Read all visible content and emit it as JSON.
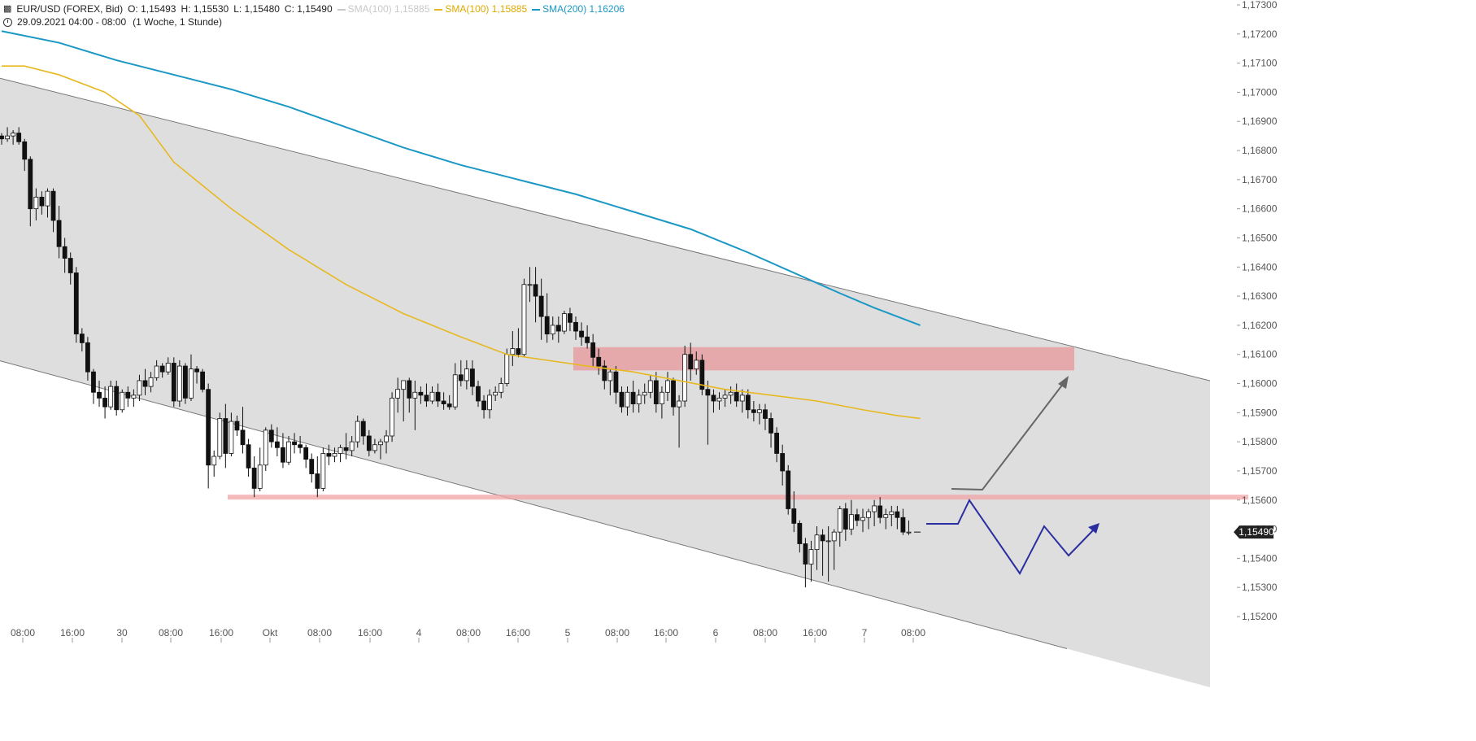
{
  "header": {
    "symbol": "EUR/USD (FOREX, Bid)",
    "o": "O: 1,15493",
    "h": "H: 1,15530",
    "l": "L: 1,15480",
    "c": "C: 1,15490",
    "sma1_label": "SMA(100)",
    "sma1_value": "1,15885",
    "sma2_label": "SMA(100)",
    "sma2_value": "1,15885",
    "sma3_label": "SMA(200)",
    "sma3_value": "1,16206",
    "range": "29.09.2021 04:00 - 08:00",
    "period": "(1 Woche, 1 Stunde)"
  },
  "colors": {
    "sma1": "#c8c8c8",
    "sma2": "#e8b820",
    "sma3": "#1b98c4",
    "channel": "#dedede",
    "zone": "#e6a0a3",
    "projection_up": "#666666",
    "projection_path": "#2b2ea0",
    "price_tag": "#222222"
  },
  "chart_data": {
    "type": "candlestick",
    "instrument": "EUR/USD",
    "ylim": [
      1.1515,
      1.173
    ],
    "y_ticks": [
      "1,17300",
      "1,17200",
      "1,17100",
      "1,17000",
      "1,16900",
      "1,16800",
      "1,16700",
      "1,16600",
      "1,16500",
      "1,16400",
      "1,16300",
      "1,16200",
      "1,16100",
      "1,16000",
      "1,15900",
      "1,15800",
      "1,15700",
      "1,15600",
      "1,15500",
      "1,15400",
      "1,15300",
      "1,15200"
    ],
    "x_ticks": [
      "08:00",
      "16:00",
      "30",
      "08:00",
      "16:00",
      "Okt",
      "08:00",
      "16:00",
      "4",
      "08:00",
      "16:00",
      "5",
      "08:00",
      "16:00",
      "6",
      "08:00",
      "16:00",
      "7",
      "08:00"
    ],
    "last_price": "1,15490",
    "sma_yellow": [
      [
        0,
        1.1709
      ],
      [
        4,
        1.1709
      ],
      [
        10,
        1.1706
      ],
      [
        18,
        1.17
      ],
      [
        24,
        1.1692
      ],
      [
        30,
        1.1676
      ],
      [
        40,
        1.166
      ],
      [
        50,
        1.1646
      ],
      [
        60,
        1.1634
      ],
      [
        70,
        1.1624
      ],
      [
        80,
        1.1616
      ],
      [
        88,
        1.161
      ],
      [
        95,
        1.1608
      ],
      [
        102,
        1.1606
      ],
      [
        110,
        1.1604
      ],
      [
        118,
        1.1601
      ],
      [
        126,
        1.1598
      ],
      [
        134,
        1.1596
      ],
      [
        142,
        1.1594
      ],
      [
        150,
        1.1591
      ],
      [
        156,
        1.1589
      ],
      [
        160,
        1.1588
      ]
    ],
    "sma_blue": [
      [
        0,
        1.1721
      ],
      [
        10,
        1.1717
      ],
      [
        20,
        1.1711
      ],
      [
        30,
        1.1706
      ],
      [
        40,
        1.1701
      ],
      [
        50,
        1.1695
      ],
      [
        60,
        1.1688
      ],
      [
        70,
        1.1681
      ],
      [
        80,
        1.1675
      ],
      [
        90,
        1.167
      ],
      [
        100,
        1.1665
      ],
      [
        110,
        1.1659
      ],
      [
        120,
        1.1653
      ],
      [
        130,
        1.1645
      ],
      [
        138,
        1.1638
      ],
      [
        146,
        1.1631
      ],
      [
        152,
        1.1626
      ],
      [
        156,
        1.1623
      ],
      [
        160,
        1.162
      ]
    ],
    "channel": {
      "upper": [
        [
          0,
          1.17048
        ],
        [
          212,
          1.16002
        ]
      ],
      "lower": [
        [
          0,
          1.16078
        ],
        [
          212,
          1.14949
        ]
      ]
    },
    "resistance_zone": [
      1.16045,
      1.16125
    ],
    "support_level": 1.1561,
    "candles": [
      [
        1.1685,
        1.1686,
        1.1682,
        1.1684
      ],
      [
        1.1684,
        1.1688,
        1.1683,
        1.1685
      ],
      [
        1.1685,
        1.1687,
        1.1682,
        1.1686
      ],
      [
        1.1686,
        1.1688,
        1.1682,
        1.1683
      ],
      [
        1.1683,
        1.1684,
        1.1673,
        1.1677
      ],
      [
        1.1677,
        1.1678,
        1.1654,
        1.166
      ],
      [
        1.166,
        1.1667,
        1.1656,
        1.1664
      ],
      [
        1.1664,
        1.1666,
        1.1658,
        1.1661
      ],
      [
        1.1661,
        1.1667,
        1.1657,
        1.1666
      ],
      [
        1.1666,
        1.1667,
        1.1652,
        1.1656
      ],
      [
        1.1656,
        1.1661,
        1.1643,
        1.1647
      ],
      [
        1.1647,
        1.165,
        1.1638,
        1.1643
      ],
      [
        1.1643,
        1.1645,
        1.1634,
        1.1638
      ],
      [
        1.1638,
        1.164,
        1.1614,
        1.1617
      ],
      [
        1.1617,
        1.1619,
        1.1611,
        1.1614
      ],
      [
        1.1614,
        1.1616,
        1.1601,
        1.1604
      ],
      [
        1.1604,
        1.1605,
        1.1593,
        1.1597
      ],
      [
        1.1597,
        1.1601,
        1.1592,
        1.1595
      ],
      [
        1.1595,
        1.1599,
        1.1588,
        1.1592
      ],
      [
        1.1592,
        1.1601,
        1.1591,
        1.1599
      ],
      [
        1.1599,
        1.1601,
        1.1589,
        1.1591
      ],
      [
        1.1591,
        1.1598,
        1.159,
        1.1597
      ],
      [
        1.1597,
        1.1599,
        1.1592,
        1.1595
      ],
      [
        1.1595,
        1.1598,
        1.1592,
        1.1596
      ],
      [
        1.1596,
        1.1603,
        1.1594,
        1.1601
      ],
      [
        1.1601,
        1.1605,
        1.1596,
        1.1599
      ],
      [
        1.1599,
        1.1604,
        1.1597,
        1.1602
      ],
      [
        1.1602,
        1.1608,
        1.1601,
        1.1606
      ],
      [
        1.1606,
        1.1607,
        1.1602,
        1.1604
      ],
      [
        1.1604,
        1.1609,
        1.1603,
        1.1607
      ],
      [
        1.1607,
        1.1609,
        1.1592,
        1.1594
      ],
      [
        1.1594,
        1.1608,
        1.1592,
        1.1606
      ],
      [
        1.1606,
        1.1607,
        1.1593,
        1.1595
      ],
      [
        1.1595,
        1.161,
        1.1594,
        1.1605
      ],
      [
        1.1605,
        1.1606,
        1.16,
        1.1604
      ],
      [
        1.1604,
        1.1605,
        1.1597,
        1.1598
      ],
      [
        1.1598,
        1.16,
        1.1564,
        1.1572
      ],
      [
        1.1572,
        1.1577,
        1.1568,
        1.1575
      ],
      [
        1.1575,
        1.159,
        1.1574,
        1.1588
      ],
      [
        1.1588,
        1.1593,
        1.1571,
        1.1576
      ],
      [
        1.1576,
        1.159,
        1.1575,
        1.1587
      ],
      [
        1.1587,
        1.1589,
        1.1582,
        1.1584
      ],
      [
        1.1584,
        1.1592,
        1.1576,
        1.1579
      ],
      [
        1.1579,
        1.1581,
        1.1568,
        1.1571
      ],
      [
        1.1571,
        1.1575,
        1.1561,
        1.1564
      ],
      [
        1.1564,
        1.1578,
        1.1563,
        1.1572
      ],
      [
        1.1572,
        1.1585,
        1.157,
        1.1584
      ],
      [
        1.1584,
        1.1586,
        1.1578,
        1.158
      ],
      [
        1.158,
        1.1585,
        1.1575,
        1.1578
      ],
      [
        1.1578,
        1.1583,
        1.1571,
        1.1573
      ],
      [
        1.1573,
        1.1582,
        1.1572,
        1.158
      ],
      [
        1.158,
        1.1583,
        1.1576,
        1.1579
      ],
      [
        1.1579,
        1.1582,
        1.1576,
        1.1578
      ],
      [
        1.1578,
        1.1579,
        1.1571,
        1.1574
      ],
      [
        1.1574,
        1.1576,
        1.1566,
        1.1569
      ],
      [
        1.1569,
        1.1575,
        1.1561,
        1.1564
      ],
      [
        1.1564,
        1.1578,
        1.1563,
        1.1576
      ],
      [
        1.1576,
        1.1579,
        1.1572,
        1.1575
      ],
      [
        1.1575,
        1.1578,
        1.1573,
        1.1576
      ],
      [
        1.1576,
        1.1579,
        1.1573,
        1.1578
      ],
      [
        1.1578,
        1.1583,
        1.1574,
        1.1577
      ],
      [
        1.1577,
        1.1582,
        1.1575,
        1.158
      ],
      [
        1.158,
        1.1589,
        1.1578,
        1.1587
      ],
      [
        1.1587,
        1.1588,
        1.1579,
        1.1582
      ],
      [
        1.1582,
        1.1584,
        1.1575,
        1.1577
      ],
      [
        1.1577,
        1.1581,
        1.1576,
        1.1579
      ],
      [
        1.1579,
        1.1581,
        1.1574,
        1.158
      ],
      [
        1.158,
        1.1584,
        1.1576,
        1.1582
      ],
      [
        1.1582,
        1.1597,
        1.158,
        1.1595
      ],
      [
        1.1595,
        1.1602,
        1.159,
        1.1598
      ],
      [
        1.1598,
        1.16,
        1.1587,
        1.1601
      ],
      [
        1.1601,
        1.1602,
        1.159,
        1.1595
      ],
      [
        1.1595,
        1.1601,
        1.1584,
        1.1597
      ],
      [
        1.1597,
        1.1599,
        1.1593,
        1.1596
      ],
      [
        1.1596,
        1.16,
        1.1592,
        1.1594
      ],
      [
        1.1594,
        1.1599,
        1.1593,
        1.1597
      ],
      [
        1.1597,
        1.16,
        1.1592,
        1.1594
      ],
      [
        1.1594,
        1.1597,
        1.1591,
        1.1593
      ],
      [
        1.1593,
        1.1596,
        1.1591,
        1.1592
      ],
      [
        1.1592,
        1.1607,
        1.1591,
        1.1603
      ],
      [
        1.1603,
        1.1608,
        1.1599,
        1.1601
      ],
      [
        1.1601,
        1.1608,
        1.1598,
        1.1605
      ],
      [
        1.1605,
        1.1608,
        1.1596,
        1.1599
      ],
      [
        1.1599,
        1.1601,
        1.1592,
        1.1594
      ],
      [
        1.1594,
        1.1596,
        1.1588,
        1.1591
      ],
      [
        1.1591,
        1.1598,
        1.1588,
        1.1596
      ],
      [
        1.1596,
        1.1599,
        1.1594,
        1.1597
      ],
      [
        1.1597,
        1.1602,
        1.1595,
        1.16
      ],
      [
        1.16,
        1.1612,
        1.1599,
        1.161
      ],
      [
        1.161,
        1.1618,
        1.1606,
        1.1612
      ],
      [
        1.1612,
        1.1619,
        1.1609,
        1.161
      ],
      [
        1.161,
        1.1636,
        1.1609,
        1.1634
      ],
      [
        1.1634,
        1.164,
        1.1628,
        1.1634
      ],
      [
        1.1634,
        1.164,
        1.1621,
        1.163
      ],
      [
        1.163,
        1.1636,
        1.1615,
        1.1623
      ],
      [
        1.1623,
        1.1631,
        1.1614,
        1.1617
      ],
      [
        1.1617,
        1.1623,
        1.1615,
        1.162
      ],
      [
        1.162,
        1.1623,
        1.1614,
        1.1618
      ],
      [
        1.1618,
        1.1625,
        1.1617,
        1.1624
      ],
      [
        1.1624,
        1.1626,
        1.1618,
        1.1621
      ],
      [
        1.1621,
        1.1623,
        1.1615,
        1.1618
      ],
      [
        1.1618,
        1.1621,
        1.1613,
        1.1616
      ],
      [
        1.1616,
        1.162,
        1.1612,
        1.1614
      ],
      [
        1.1614,
        1.1617,
        1.1606,
        1.1609
      ],
      [
        1.1609,
        1.1612,
        1.1603,
        1.1606
      ],
      [
        1.1606,
        1.1608,
        1.1598,
        1.1601
      ],
      [
        1.1601,
        1.1605,
        1.1596,
        1.1604
      ],
      [
        1.1604,
        1.1606,
        1.1593,
        1.1597
      ],
      [
        1.1597,
        1.1599,
        1.159,
        1.1592
      ],
      [
        1.1592,
        1.1599,
        1.1589,
        1.1597
      ],
      [
        1.1597,
        1.1601,
        1.159,
        1.1593
      ],
      [
        1.1593,
        1.1598,
        1.159,
        1.1596
      ],
      [
        1.1596,
        1.16,
        1.1593,
        1.1597
      ],
      [
        1.1597,
        1.1603,
        1.1595,
        1.1601
      ],
      [
        1.1601,
        1.1604,
        1.159,
        1.1593
      ],
      [
        1.1593,
        1.1599,
        1.1588,
        1.1597
      ],
      [
        1.1597,
        1.1604,
        1.1594,
        1.1601
      ],
      [
        1.1601,
        1.1602,
        1.1589,
        1.1592
      ],
      [
        1.1592,
        1.1596,
        1.1578,
        1.1594
      ],
      [
        1.1594,
        1.1613,
        1.1592,
        1.161
      ],
      [
        1.161,
        1.1614,
        1.1601,
        1.1605
      ],
      [
        1.1605,
        1.1611,
        1.1603,
        1.1608
      ],
      [
        1.1608,
        1.161,
        1.1596,
        1.1598
      ],
      [
        1.1598,
        1.1601,
        1.1579,
        1.1596
      ],
      [
        1.1596,
        1.1598,
        1.159,
        1.1594
      ],
      [
        1.1594,
        1.1597,
        1.1591,
        1.1595
      ],
      [
        1.1595,
        1.1598,
        1.1592,
        1.1596
      ],
      [
        1.1596,
        1.1599,
        1.1593,
        1.1597
      ],
      [
        1.1597,
        1.16,
        1.1592,
        1.1594
      ],
      [
        1.1594,
        1.1598,
        1.159,
        1.1596
      ],
      [
        1.1596,
        1.1598,
        1.1588,
        1.1591
      ],
      [
        1.1591,
        1.1594,
        1.1587,
        1.159
      ],
      [
        1.159,
        1.1593,
        1.1586,
        1.1591
      ],
      [
        1.1591,
        1.1593,
        1.1584,
        1.1588
      ],
      [
        1.1588,
        1.159,
        1.1578,
        1.1583
      ],
      [
        1.1583,
        1.1585,
        1.1573,
        1.1576
      ],
      [
        1.1576,
        1.1579,
        1.1565,
        1.157
      ],
      [
        1.157,
        1.1572,
        1.1555,
        1.1557
      ],
      [
        1.1557,
        1.1563,
        1.1549,
        1.1552
      ],
      [
        1.1552,
        1.1553,
        1.1542,
        1.1545
      ],
      [
        1.1545,
        1.1547,
        1.153,
        1.1538
      ],
      [
        1.1538,
        1.1546,
        1.1532,
        1.1543
      ],
      [
        1.1543,
        1.1551,
        1.1536,
        1.1548
      ],
      [
        1.1548,
        1.155,
        1.1534,
        1.1546
      ],
      [
        1.1546,
        1.1551,
        1.1532,
        1.1546
      ],
      [
        1.1546,
        1.155,
        1.1536,
        1.1549
      ],
      [
        1.1549,
        1.1558,
        1.1544,
        1.1557
      ],
      [
        1.1557,
        1.1559,
        1.1546,
        1.155
      ],
      [
        1.155,
        1.156,
        1.1548,
        1.1555
      ],
      [
        1.1555,
        1.1557,
        1.1551,
        1.1553
      ],
      [
        1.1553,
        1.1557,
        1.1549,
        1.1554
      ],
      [
        1.1554,
        1.1557,
        1.155,
        1.1556
      ],
      [
        1.1556,
        1.156,
        1.1551,
        1.1558
      ],
      [
        1.1558,
        1.1561,
        1.1552,
        1.1554
      ],
      [
        1.1554,
        1.1557,
        1.155,
        1.1555
      ],
      [
        1.1555,
        1.1558,
        1.1551,
        1.1556
      ],
      [
        1.1556,
        1.1558,
        1.155,
        1.1554
      ],
      [
        1.1554,
        1.1557,
        1.1548,
        1.1549
      ],
      [
        1.1549,
        1.1553,
        1.1548,
        1.1549
      ]
    ]
  }
}
